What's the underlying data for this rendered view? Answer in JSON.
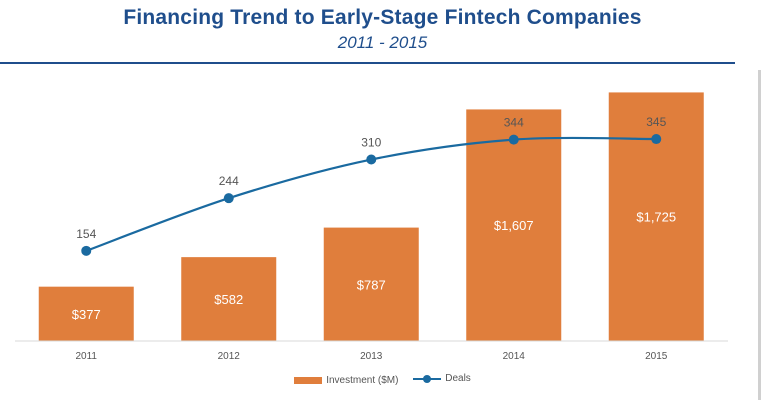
{
  "title": "Financing Trend to Early-Stage  Fintech Companies",
  "subtitle": "2011 - 2015",
  "chart_data": {
    "type": "bar",
    "categories": [
      "2011",
      "2012",
      "2013",
      "2014",
      "2015"
    ],
    "series": [
      {
        "name": "Investment ($M)",
        "type": "bar",
        "values": [
          377,
          582,
          787,
          1607,
          1725
        ],
        "labels": [
          "$377",
          "$582",
          "$787",
          "$1,607",
          "$1,725"
        ],
        "color": "#e07e3c"
      },
      {
        "name": "Deals",
        "type": "line",
        "values": [
          154,
          244,
          310,
          344,
          345
        ],
        "labels": [
          "154",
          "244",
          "310",
          "344",
          "345"
        ],
        "color": "#1a6aa0"
      }
    ],
    "ylim_bars": [
      0,
      1950
    ],
    "ylim_line": [
      0,
      480
    ],
    "grid": false,
    "legend": "bottom"
  }
}
